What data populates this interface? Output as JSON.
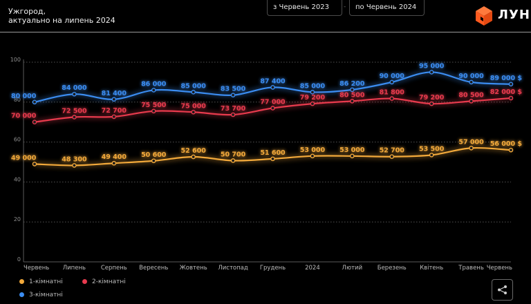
{
  "header": {
    "location": "Ужгород,",
    "updated": "актуально на липень 2024"
  },
  "filters": {
    "from_label": "з Червень 2023",
    "to_label": "по  Червень 2024",
    "separator": "-"
  },
  "logo": {
    "text": "ЛУН",
    "color": "#ff5a1f"
  },
  "share": {
    "icon": "share-icon"
  },
  "chart_data": {
    "type": "line",
    "categories": [
      "Червень",
      "Липень",
      "Серпень",
      "Вересень",
      "Жовтень",
      "Листопад",
      "Грудень",
      "2024",
      "Лютий",
      "Березень",
      "Квітень",
      "Травень",
      "Червень"
    ],
    "y_ticks": [
      "0",
      "20",
      "40",
      "60",
      "80",
      "100"
    ],
    "ylim": [
      0,
      100
    ],
    "grid": true,
    "legend_position": "bottom-left",
    "series": [
      {
        "name": "1-кімнатні",
        "color": "#f2a93b",
        "values": [
          49000,
          48300,
          49400,
          50600,
          52600,
          50700,
          51600,
          53000,
          53000,
          52700,
          53500,
          57000,
          56000
        ],
        "labels": [
          "49 000",
          "48 300",
          "49 400",
          "50 600",
          "52 600",
          "50 700",
          "51 600",
          "53 000",
          "53 000",
          "52 700",
          "53 500",
          "57 000",
          "56 000 $"
        ]
      },
      {
        "name": "2-кімнатні",
        "color": "#e83a4e",
        "values": [
          70000,
          72500,
          72700,
          75500,
          75000,
          73700,
          77000,
          79200,
          80500,
          81800,
          79200,
          80500,
          82000
        ],
        "labels": [
          "70 000",
          "72 500",
          "72 700",
          "75 500",
          "75 000",
          "73 700",
          "77 000",
          "79 200",
          "80 500",
          "81 800",
          "79 200",
          "80 500",
          "82 000 $"
        ]
      },
      {
        "name": "3-кімнатні",
        "color": "#3b8cf0",
        "values": [
          80000,
          84000,
          81400,
          86000,
          85000,
          83500,
          87400,
          85000,
          86200,
          90000,
          95000,
          90000,
          89000
        ],
        "labels": [
          "80 000",
          "84 000",
          "81 400",
          "86 000",
          "85 000",
          "83 500",
          "87 400",
          "85 000",
          "86 200",
          "90 000",
          "95 000",
          "90 000",
          "89 000 $"
        ]
      }
    ]
  }
}
